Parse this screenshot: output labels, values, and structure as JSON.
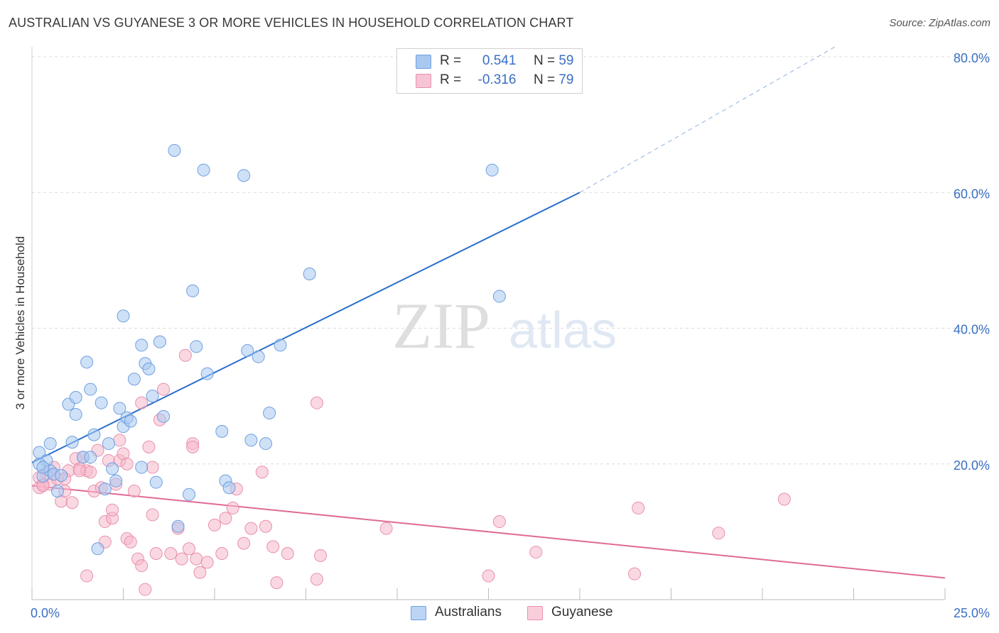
{
  "header": {
    "title": "AUSTRALIAN VS GUYANESE 3 OR MORE VEHICLES IN HOUSEHOLD CORRELATION CHART",
    "source": "Source: ZipAtlas.com"
  },
  "legend": {
    "rows": [
      {
        "r_label": "R =",
        "r_value": "0.541",
        "n_label": "N =",
        "n_value": "59"
      },
      {
        "r_label": "R =",
        "r_value": "-0.316",
        "n_label": "N =",
        "n_value": "79"
      }
    ]
  },
  "watermark": {
    "zip": "ZIP",
    "atlas": "atlas"
  },
  "colors": {
    "australians_fill": "#a8c8f0",
    "australians_stroke": "#6f9fe0",
    "australians_line": "#2a6fcc",
    "guyanese_fill": "#f6b8cb",
    "guyanese_stroke": "#e890ac",
    "guyanese_line": "#e06a95",
    "tick_label": "#3a6fc4"
  },
  "chart_data": {
    "type": "scatter",
    "title": "AUSTRALIAN VS GUYANESE 3 OR MORE VEHICLES IN HOUSEHOLD CORRELATION CHART",
    "xlabel": "",
    "ylabel": "3 or more Vehicles in Household",
    "xlim": [
      0,
      25
    ],
    "ylim": [
      0,
      80
    ],
    "x_tick_labels": [
      "0.0%",
      "25.0%"
    ],
    "y_ticks": [
      20,
      40,
      60,
      80
    ],
    "y_tick_labels": [
      "20.0%",
      "40.0%",
      "60.0%",
      "80.0%"
    ],
    "grid": true,
    "legend_position": "bottom",
    "series": [
      {
        "name": "Australians",
        "points": [
          [
            0.2,
            21.7
          ],
          [
            0.3,
            18.2
          ],
          [
            0.4,
            20.5
          ],
          [
            0.5,
            19.0
          ],
          [
            0.5,
            23.0
          ],
          [
            0.6,
            18.5
          ],
          [
            0.7,
            16.0
          ],
          [
            0.8,
            18.3
          ],
          [
            1.0,
            28.8
          ],
          [
            1.1,
            23.2
          ],
          [
            1.2,
            27.3
          ],
          [
            1.2,
            29.8
          ],
          [
            1.4,
            21.0
          ],
          [
            1.5,
            35.0
          ],
          [
            1.6,
            21.0
          ],
          [
            1.6,
            31.0
          ],
          [
            1.7,
            24.3
          ],
          [
            1.8,
            7.5
          ],
          [
            1.9,
            29.0
          ],
          [
            2.0,
            16.3
          ],
          [
            2.1,
            23.0
          ],
          [
            2.2,
            19.3
          ],
          [
            2.3,
            17.5
          ],
          [
            2.4,
            28.2
          ],
          [
            2.5,
            41.8
          ],
          [
            2.5,
            25.5
          ],
          [
            2.6,
            26.8
          ],
          [
            2.7,
            26.3
          ],
          [
            2.8,
            32.5
          ],
          [
            3.0,
            37.5
          ],
          [
            3.0,
            19.5
          ],
          [
            3.1,
            34.8
          ],
          [
            3.2,
            34.0
          ],
          [
            3.3,
            30.0
          ],
          [
            3.4,
            17.3
          ],
          [
            3.5,
            38.0
          ],
          [
            3.6,
            27.0
          ],
          [
            3.9,
            66.2
          ],
          [
            4.0,
            10.8
          ],
          [
            4.3,
            15.5
          ],
          [
            4.4,
            45.5
          ],
          [
            4.5,
            37.3
          ],
          [
            4.7,
            63.3
          ],
          [
            4.8,
            33.3
          ],
          [
            5.2,
            24.8
          ],
          [
            5.3,
            17.5
          ],
          [
            5.4,
            16.5
          ],
          [
            5.8,
            62.5
          ],
          [
            5.9,
            36.7
          ],
          [
            6.0,
            23.5
          ],
          [
            6.2,
            35.8
          ],
          [
            6.4,
            23.0
          ],
          [
            6.5,
            27.5
          ],
          [
            6.8,
            37.5
          ],
          [
            7.6,
            48.0
          ],
          [
            12.8,
            44.7
          ],
          [
            12.6,
            63.3
          ],
          [
            0.2,
            20.0
          ],
          [
            0.3,
            19.5
          ]
        ]
      },
      {
        "name": "Guyanese",
        "points": [
          [
            0.2,
            16.5
          ],
          [
            0.3,
            17.0
          ],
          [
            0.4,
            18.5
          ],
          [
            0.5,
            17.0
          ],
          [
            0.6,
            19.5
          ],
          [
            0.7,
            17.8
          ],
          [
            0.8,
            14.5
          ],
          [
            0.9,
            16.0
          ],
          [
            1.0,
            19.0
          ],
          [
            1.1,
            14.3
          ],
          [
            1.2,
            20.8
          ],
          [
            1.3,
            19.3
          ],
          [
            1.4,
            21.0
          ],
          [
            1.5,
            19.0
          ],
          [
            1.5,
            3.5
          ],
          [
            1.6,
            18.8
          ],
          [
            1.7,
            16.0
          ],
          [
            1.8,
            22.0
          ],
          [
            1.9,
            16.5
          ],
          [
            2.0,
            8.5
          ],
          [
            2.0,
            11.5
          ],
          [
            2.1,
            20.5
          ],
          [
            2.2,
            12.0
          ],
          [
            2.3,
            17.0
          ],
          [
            2.4,
            23.5
          ],
          [
            2.4,
            20.5
          ],
          [
            2.5,
            21.5
          ],
          [
            2.6,
            20.0
          ],
          [
            2.6,
            9.0
          ],
          [
            2.7,
            8.5
          ],
          [
            2.8,
            16.0
          ],
          [
            2.9,
            6.0
          ],
          [
            3.0,
            5.0
          ],
          [
            3.0,
            29.0
          ],
          [
            3.1,
            1.5
          ],
          [
            3.2,
            22.5
          ],
          [
            3.3,
            19.5
          ],
          [
            3.3,
            12.5
          ],
          [
            3.4,
            6.8
          ],
          [
            3.5,
            26.5
          ],
          [
            3.6,
            31.0
          ],
          [
            3.8,
            6.8
          ],
          [
            4.0,
            10.5
          ],
          [
            4.1,
            6.0
          ],
          [
            4.2,
            36.0
          ],
          [
            4.3,
            7.5
          ],
          [
            4.4,
            23.0
          ],
          [
            4.4,
            22.5
          ],
          [
            4.5,
            6.0
          ],
          [
            4.6,
            4.0
          ],
          [
            4.8,
            5.5
          ],
          [
            5.0,
            11.0
          ],
          [
            5.2,
            6.8
          ],
          [
            5.3,
            12.0
          ],
          [
            5.5,
            13.5
          ],
          [
            5.6,
            16.3
          ],
          [
            5.8,
            8.3
          ],
          [
            6.0,
            10.5
          ],
          [
            6.3,
            18.8
          ],
          [
            6.4,
            10.8
          ],
          [
            6.6,
            7.8
          ],
          [
            6.7,
            2.5
          ],
          [
            7.0,
            6.8
          ],
          [
            7.8,
            29.0
          ],
          [
            7.9,
            6.5
          ],
          [
            7.8,
            3.0
          ],
          [
            9.7,
            10.5
          ],
          [
            12.5,
            3.5
          ],
          [
            12.8,
            11.5
          ],
          [
            13.8,
            7.0
          ],
          [
            16.6,
            13.5
          ],
          [
            16.5,
            3.8
          ],
          [
            18.8,
            9.8
          ],
          [
            20.6,
            14.8
          ],
          [
            0.2,
            18.0
          ],
          [
            0.3,
            16.8
          ],
          [
            0.9,
            17.8
          ],
          [
            1.3,
            19.0
          ],
          [
            2.2,
            13.2
          ]
        ]
      }
    ],
    "trendlines": [
      {
        "name": "Australians",
        "solid": [
          [
            0,
            20.2
          ],
          [
            15,
            60.0
          ]
        ],
        "dashed": [
          [
            15,
            60.0
          ],
          [
            22,
            81.5
          ]
        ]
      },
      {
        "name": "Guyanese",
        "solid": [
          [
            0,
            16.8
          ],
          [
            25,
            3.2
          ]
        ]
      }
    ]
  },
  "bottom_legend": {
    "items": [
      {
        "label": "Australians"
      },
      {
        "label": "Guyanese"
      }
    ]
  }
}
